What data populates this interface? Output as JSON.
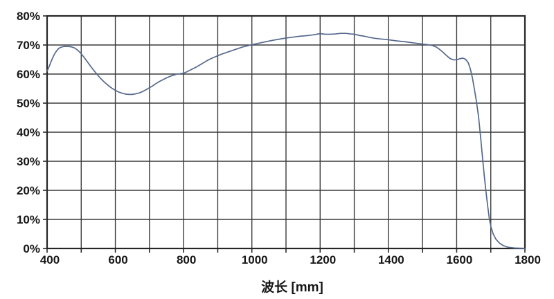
{
  "page": {
    "background": "#ffffff"
  },
  "chart_data": {
    "type": "line",
    "title": "",
    "xlabel": "波长 [mm]",
    "ylabel": "",
    "x_min": 400,
    "x_max": 1800,
    "x_grid_step": 100,
    "x_label_step": 200,
    "x_tick_labels": [
      "400",
      "600",
      "800",
      "1000",
      "1200",
      "1400",
      "1600",
      "1800"
    ],
    "y_min": 0,
    "y_max": 80,
    "y_label_step": 10,
    "y_tick_labels": [
      "0%",
      "10%",
      "20%",
      "30%",
      "40%",
      "50%",
      "60%",
      "70%",
      "80%"
    ],
    "grid": true,
    "legend": "none",
    "colors": {
      "line": "#54688c",
      "grid": "#3a3a3a",
      "border": "#262626",
      "text": "#161616"
    },
    "series": [
      {
        "points": [
          [
            400,
            61.0
          ],
          [
            405,
            62.3
          ],
          [
            410,
            63.8
          ],
          [
            415,
            65.2
          ],
          [
            420,
            66.5
          ],
          [
            425,
            67.5
          ],
          [
            430,
            68.3
          ],
          [
            435,
            68.9
          ],
          [
            440,
            69.2
          ],
          [
            450,
            69.5
          ],
          [
            460,
            69.5
          ],
          [
            470,
            69.4
          ],
          [
            480,
            69.0
          ],
          [
            490,
            68.2
          ],
          [
            500,
            67.0
          ],
          [
            510,
            65.5
          ],
          [
            520,
            63.9
          ],
          [
            530,
            62.3
          ],
          [
            540,
            60.8
          ],
          [
            550,
            59.4
          ],
          [
            560,
            58.1
          ],
          [
            570,
            57.0
          ],
          [
            580,
            56.0
          ],
          [
            590,
            55.1
          ],
          [
            600,
            54.4
          ],
          [
            610,
            53.8
          ],
          [
            620,
            53.4
          ],
          [
            630,
            53.1
          ],
          [
            640,
            53.0
          ],
          [
            650,
            53.0
          ],
          [
            660,
            53.2
          ],
          [
            670,
            53.5
          ],
          [
            680,
            54.0
          ],
          [
            690,
            54.6
          ],
          [
            700,
            55.3
          ],
          [
            710,
            56.0
          ],
          [
            720,
            56.8
          ],
          [
            730,
            57.5
          ],
          [
            740,
            58.1
          ],
          [
            750,
            58.7
          ],
          [
            760,
            59.2
          ],
          [
            770,
            59.6
          ],
          [
            780,
            60.0
          ],
          [
            790,
            60.1
          ],
          [
            800,
            60.3
          ],
          [
            810,
            60.8
          ],
          [
            820,
            61.4
          ],
          [
            830,
            62.0
          ],
          [
            840,
            62.6
          ],
          [
            850,
            63.3
          ],
          [
            860,
            64.0
          ],
          [
            870,
            64.7
          ],
          [
            880,
            65.3
          ],
          [
            890,
            65.8
          ],
          [
            900,
            66.3
          ],
          [
            910,
            66.8
          ],
          [
            920,
            67.2
          ],
          [
            930,
            67.6
          ],
          [
            940,
            68.0
          ],
          [
            950,
            68.4
          ],
          [
            960,
            68.8
          ],
          [
            970,
            69.2
          ],
          [
            980,
            69.5
          ],
          [
            990,
            69.8
          ],
          [
            1000,
            70.1
          ],
          [
            1020,
            70.6
          ],
          [
            1040,
            71.1
          ],
          [
            1060,
            71.6
          ],
          [
            1080,
            72.0
          ],
          [
            1100,
            72.4
          ],
          [
            1120,
            72.7
          ],
          [
            1140,
            73.0
          ],
          [
            1160,
            73.2
          ],
          [
            1180,
            73.5
          ],
          [
            1200,
            73.9
          ],
          [
            1215,
            73.7
          ],
          [
            1230,
            73.7
          ],
          [
            1245,
            73.8
          ],
          [
            1260,
            74.0
          ],
          [
            1275,
            74.0
          ],
          [
            1290,
            73.8
          ],
          [
            1300,
            73.7
          ],
          [
            1315,
            73.3
          ],
          [
            1330,
            73.0
          ],
          [
            1345,
            72.6
          ],
          [
            1360,
            72.3
          ],
          [
            1375,
            72.1
          ],
          [
            1400,
            71.8
          ],
          [
            1425,
            71.4
          ],
          [
            1450,
            71.1
          ],
          [
            1475,
            70.7
          ],
          [
            1500,
            70.3
          ],
          [
            1515,
            70.1
          ],
          [
            1530,
            69.8
          ],
          [
            1540,
            69.3
          ],
          [
            1550,
            68.5
          ],
          [
            1560,
            67.5
          ],
          [
            1570,
            66.4
          ],
          [
            1580,
            65.4
          ],
          [
            1590,
            64.9
          ],
          [
            1600,
            64.9
          ],
          [
            1610,
            65.3
          ],
          [
            1618,
            65.5
          ],
          [
            1626,
            65.1
          ],
          [
            1634,
            63.9
          ],
          [
            1640,
            61.8
          ],
          [
            1646,
            58.8
          ],
          [
            1652,
            54.8
          ],
          [
            1658,
            50.5
          ],
          [
            1664,
            45.5
          ],
          [
            1670,
            38.5
          ],
          [
            1676,
            31.0
          ],
          [
            1681,
            25.0
          ],
          [
            1686,
            19.5
          ],
          [
            1691,
            14.5
          ],
          [
            1696,
            10.0
          ],
          [
            1701,
            7.2
          ],
          [
            1707,
            5.0
          ],
          [
            1715,
            3.2
          ],
          [
            1725,
            1.9
          ],
          [
            1735,
            1.1
          ],
          [
            1745,
            0.6
          ],
          [
            1755,
            0.35
          ],
          [
            1770,
            0.15
          ],
          [
            1800,
            0.0
          ]
        ]
      }
    ]
  }
}
